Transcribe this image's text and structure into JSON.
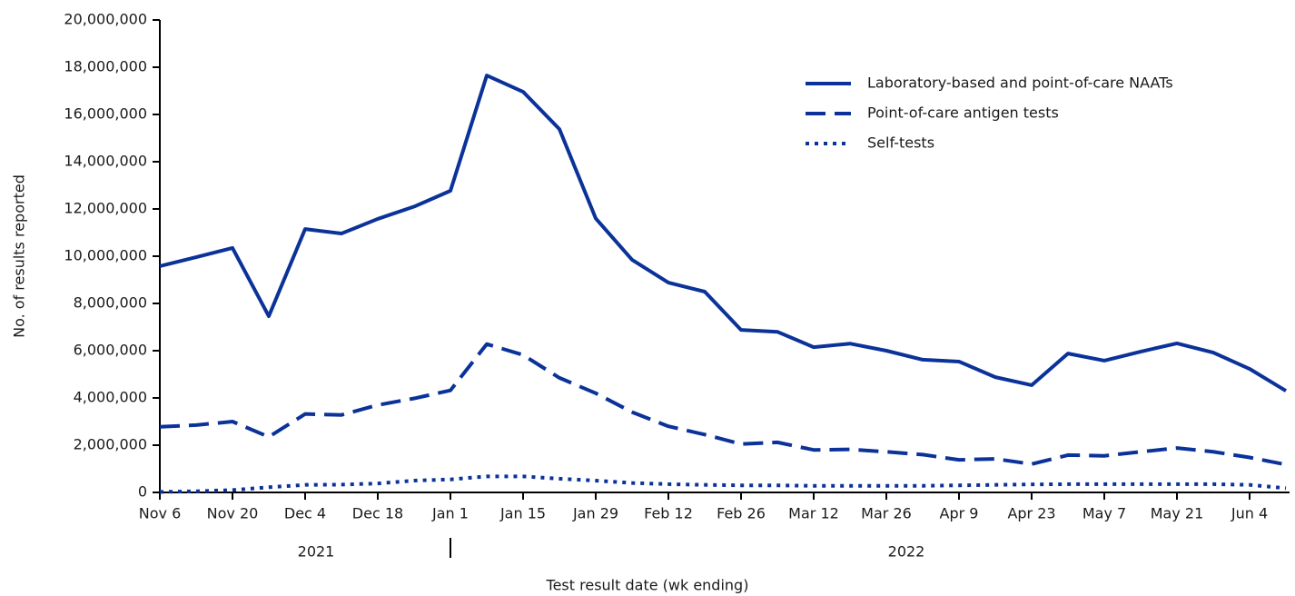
{
  "chart_data": {
    "type": "line",
    "x_label": "Test result date (wk ending)",
    "y_label": "No. of results reported",
    "categories": [
      "Nov 6",
      null,
      "Nov 20",
      null,
      "Dec 4",
      null,
      "Dec 18",
      null,
      "Jan 1",
      null,
      "Jan 15",
      null,
      "Jan 29",
      null,
      "Feb 12",
      null,
      "Feb 26",
      null,
      "Mar 12",
      null,
      "Mar 26",
      null,
      "Apr 9",
      null,
      "Apr 23",
      null,
      "May 7",
      null,
      "May 21",
      null,
      "Jun 4",
      null
    ],
    "year_labels": [
      "2021",
      "2022"
    ],
    "ylim": [
      0,
      20000000
    ],
    "yticks": [
      0,
      {
        "value": 2000000,
        "label": "2,000,000"
      },
      {
        "value": 4000000,
        "label": "4,000,000"
      },
      {
        "value": 6000000,
        "label": "6,000,000"
      },
      {
        "value": 8000000,
        "label": "8,000,000"
      },
      {
        "value": 10000000,
        "label": "10,000,000"
      },
      {
        "value": 12000000,
        "label": "12,000,000"
      },
      {
        "value": 14000000,
        "label": "14,000,000"
      },
      {
        "value": 16000000,
        "label": "16,000,000"
      },
      {
        "value": 18000000,
        "label": "18,000,000"
      },
      {
        "value": 20000000,
        "label": "20,000,000"
      }
    ],
    "grid": false,
    "legend": "upper right",
    "series": [
      {
        "name": "Laboratory-based and point-of-care NAATs",
        "color": "#0a3299",
        "style": "solid",
        "values": [
          9580000,
          9960000,
          10350000,
          7460000,
          11150000,
          10960000,
          11580000,
          12100000,
          12770000,
          17650000,
          16960000,
          15380000,
          11600000,
          9850000,
          8880000,
          8500000,
          6880000,
          6800000,
          6150000,
          6300000,
          6000000,
          5620000,
          5540000,
          4880000,
          4540000,
          5880000,
          5580000,
          5960000,
          6310000,
          5920000,
          5230000,
          4300000
        ]
      },
      {
        "name": "Point-of-care antigen tests",
        "color": "#0a3299",
        "style": "dashed",
        "values": [
          2780000,
          2850000,
          3000000,
          2350000,
          3320000,
          3280000,
          3700000,
          3980000,
          4320000,
          6280000,
          5820000,
          4850000,
          4200000,
          3400000,
          2800000,
          2450000,
          2050000,
          2120000,
          1800000,
          1820000,
          1720000,
          1600000,
          1380000,
          1420000,
          1200000,
          1580000,
          1550000,
          1720000,
          1880000,
          1720000,
          1480000,
          1180000
        ]
      },
      {
        "name": "Self-tests",
        "color": "#0a3299",
        "style": "dotted",
        "values": [
          20000,
          50000,
          100000,
          220000,
          320000,
          330000,
          380000,
          500000,
          550000,
          680000,
          680000,
          580000,
          500000,
          400000,
          350000,
          320000,
          300000,
          300000,
          280000,
          280000,
          280000,
          280000,
          300000,
          320000,
          340000,
          350000,
          350000,
          350000,
          350000,
          350000,
          320000,
          180000
        ]
      }
    ]
  }
}
